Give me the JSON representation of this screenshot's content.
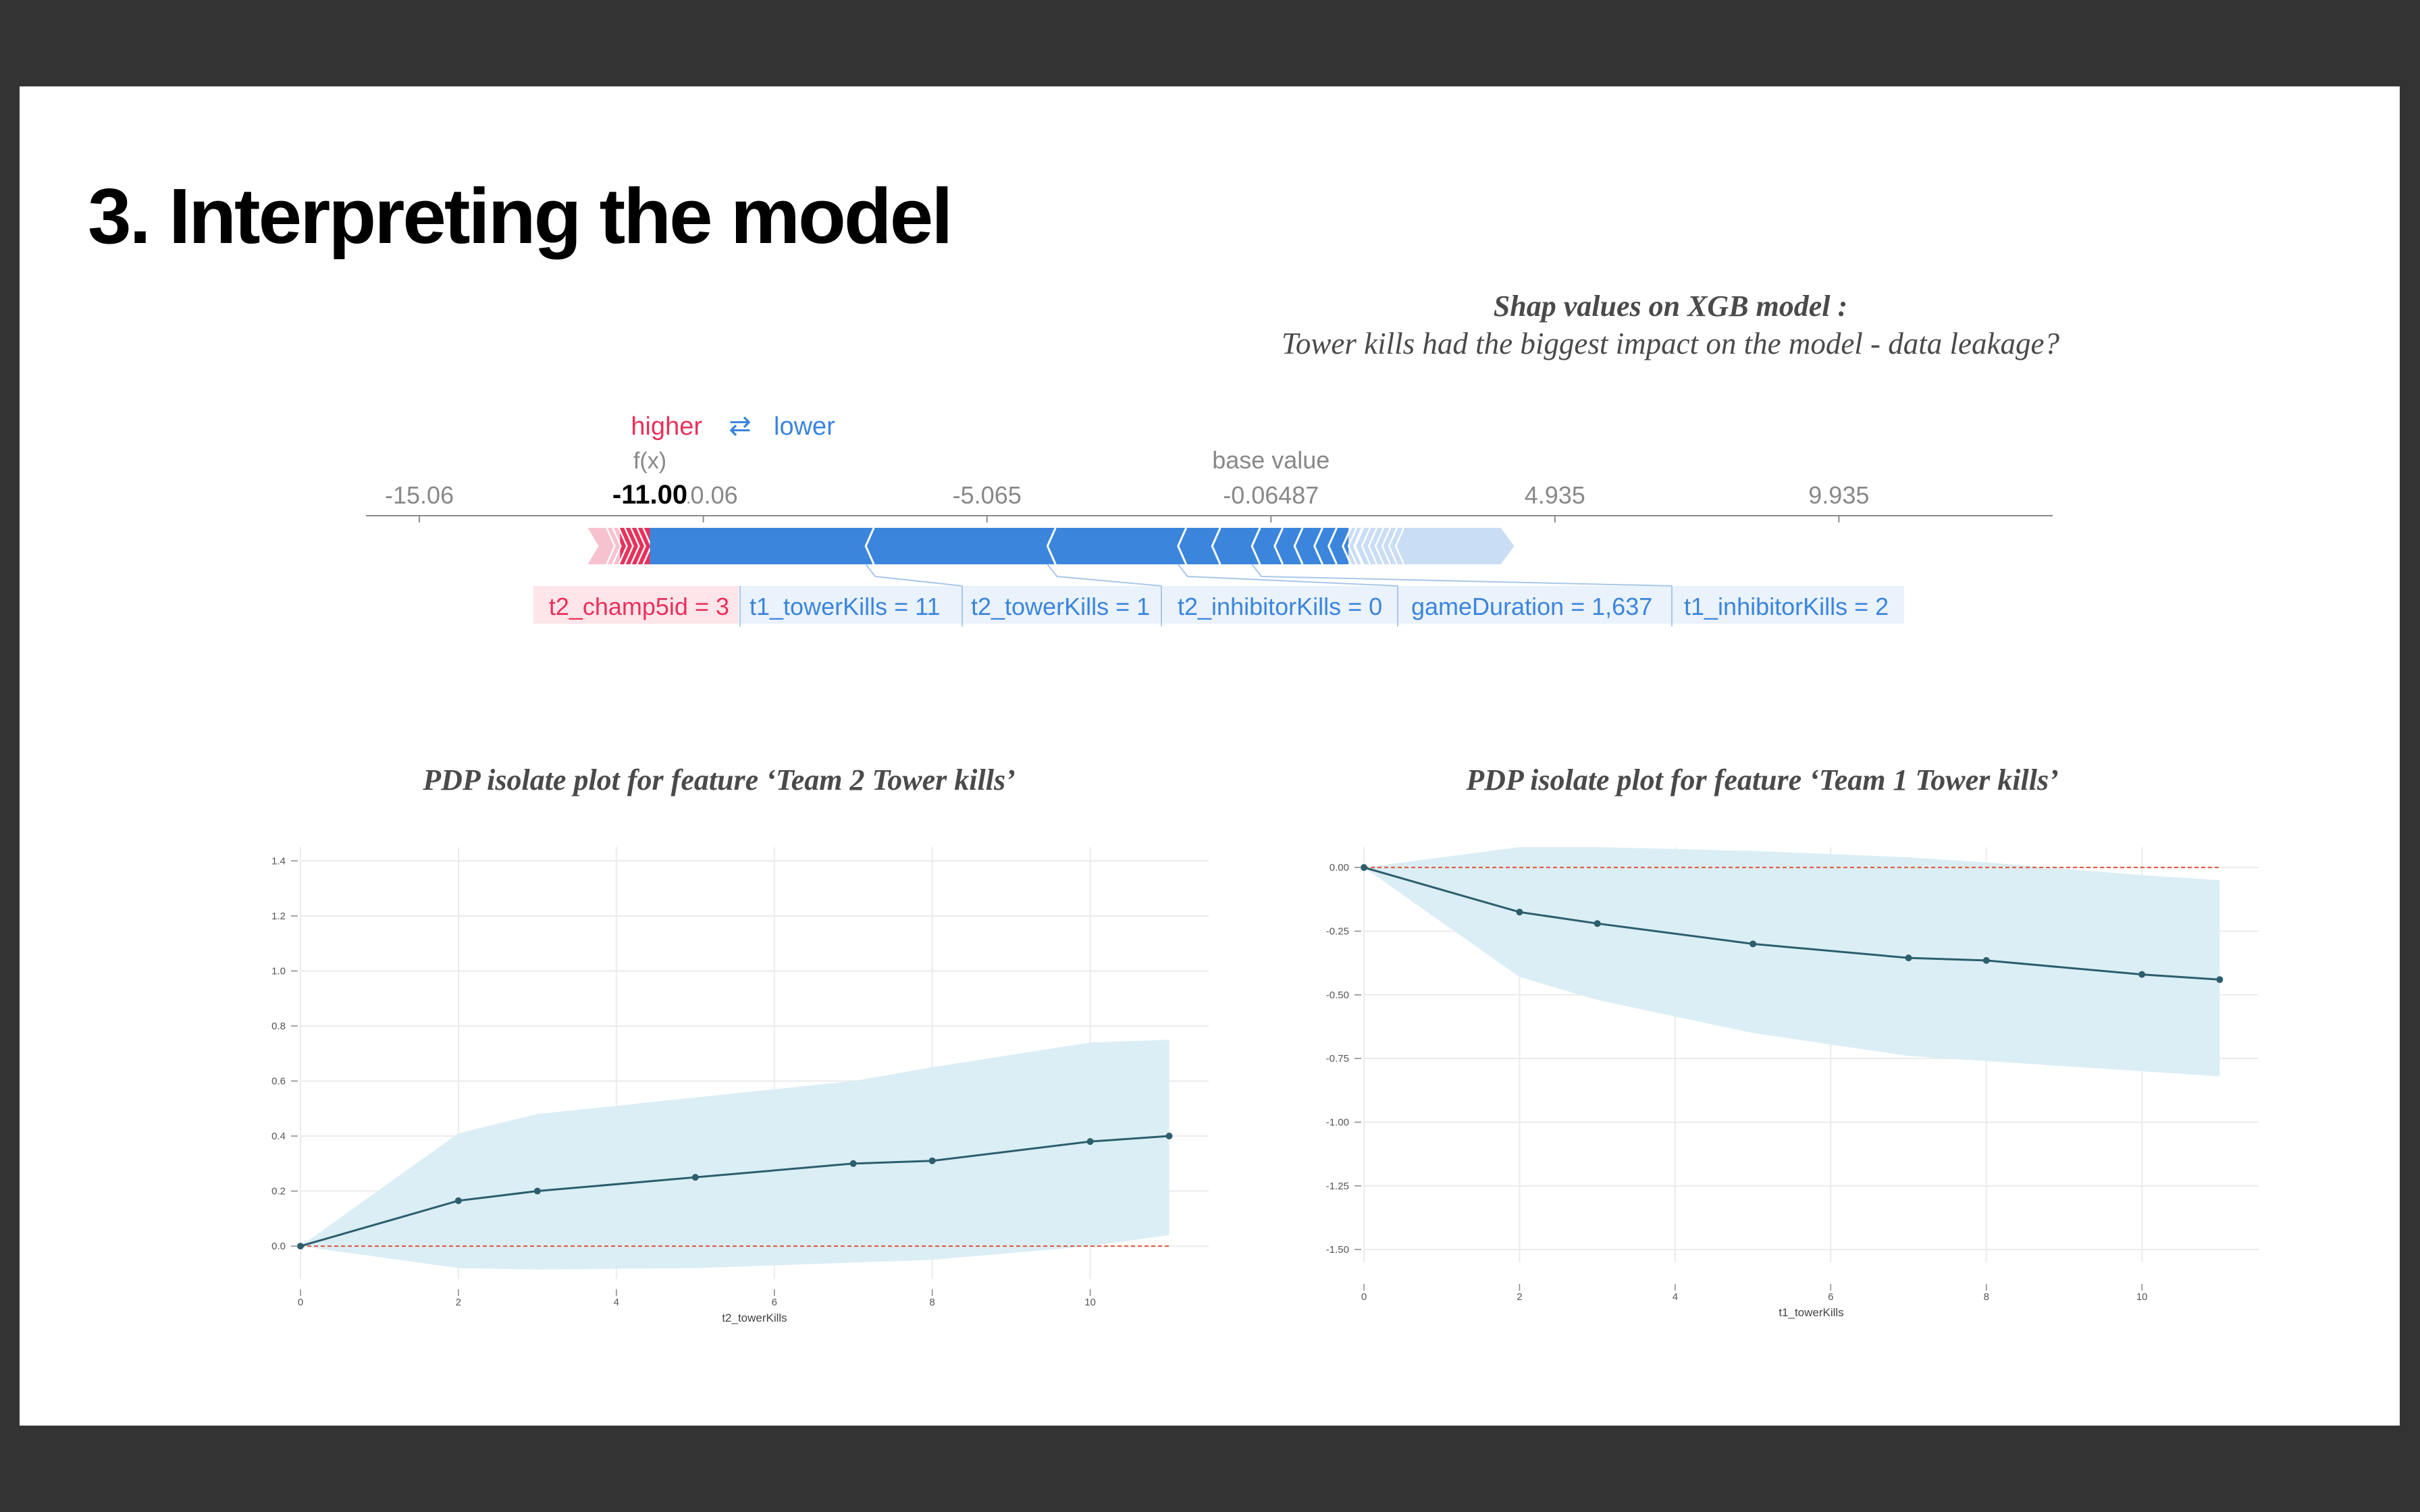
{
  "slide": {
    "title": "3. Interpreting the model",
    "shap_title": "Shap values on XGB model :",
    "shap_subtitle": "Tower kills had the biggest impact on the model - data leakage?",
    "pdp_left_title": "PDP isolate plot for feature ‘Team 2 Tower kills’",
    "pdp_right_title": "PDP isolate plot for feature ‘Team 1 Tower kills’"
  },
  "chart_data": [
    {
      "type": "force",
      "legend": {
        "higher": "higher",
        "lower": "lower",
        "arrows": "⇄"
      },
      "fx_label": "f(x)",
      "fx_value": -11.0,
      "fx_text": "-11.00",
      "base_label": "base value",
      "base_value": -0.06487,
      "axis_range": [
        -16.0,
        13.7
      ],
      "ticks": [
        {
          "value": -15.06,
          "label": "-15.06"
        },
        {
          "value": -10.06,
          "label": "-10.06"
        },
        {
          "value": -5.065,
          "label": "-5.065"
        },
        {
          "value": -0.06487,
          "label": "-0.06487"
        },
        {
          "value": 4.935,
          "label": "4.935"
        },
        {
          "value": 9.935,
          "label": "9.935"
        }
      ],
      "positive_range": [
        -12.0,
        -11.0
      ],
      "negative_range": [
        -11.0,
        4.1
      ],
      "negative_boundaries": [
        -7.2,
        -4.0,
        -1.7,
        -1.1,
        -0.4,
        0.0,
        0.35,
        0.7,
        0.95,
        1.2,
        1.4
      ],
      "features": [
        {
          "label": "t2_champ5id = 3",
          "effect": "higher"
        },
        {
          "label": "t1_towerKills = 11",
          "effect": "lower"
        },
        {
          "label": "t2_towerKills = 1",
          "effect": "lower"
        },
        {
          "label": "t2_inhibitorKills = 0",
          "effect": "lower"
        },
        {
          "label": "gameDuration = 1,637",
          "effect": "lower"
        },
        {
          "label": "t1_inhibitorKills = 2",
          "effect": "lower"
        }
      ],
      "colors": {
        "higher": "#e8315b",
        "lower": "#3b85dc",
        "axis": "#8a8a8a",
        "text": "#888888"
      }
    },
    {
      "type": "line",
      "xlabel": "t2_towerKills",
      "ylabel": "",
      "xlim": [
        0,
        11.5
      ],
      "ylim": [
        -0.12,
        1.45
      ],
      "xticks": [
        0,
        2,
        4,
        6,
        8,
        10
      ],
      "yticks": [
        0.0,
        0.2,
        0.4,
        0.6,
        0.8,
        1.0,
        1.2,
        1.4
      ],
      "ytick_labels": [
        "0.0",
        "0.2",
        "0.4",
        "0.6",
        "0.8",
        "1.0",
        "1.2",
        "1.4"
      ],
      "x": [
        0,
        2,
        3,
        5,
        7,
        8,
        10,
        11
      ],
      "y": [
        0.0,
        0.165,
        0.2,
        0.25,
        0.3,
        0.31,
        0.38,
        0.4
      ],
      "band_upper": [
        0.0,
        0.41,
        0.48,
        0.54,
        0.6,
        0.65,
        0.74,
        0.75
      ],
      "band_lower": [
        0.0,
        -0.08,
        -0.085,
        -0.08,
        -0.06,
        -0.05,
        0.0,
        0.04
      ],
      "reference_y": 0.0,
      "grid": true,
      "colors": {
        "line": "#2c5e6d",
        "band": "#dbeef5",
        "reference": "#e0533a"
      }
    },
    {
      "type": "line",
      "xlabel": "t1_towerKills",
      "ylabel": "",
      "xlim": [
        0,
        11.5
      ],
      "ylim": [
        -1.55,
        0.08
      ],
      "xticks": [
        0,
        2,
        4,
        6,
        8,
        10
      ],
      "yticks": [
        0.0,
        -0.25,
        -0.5,
        -0.75,
        -1.0,
        -1.25,
        -1.5
      ],
      "ytick_labels": [
        "0.00",
        "-0.25",
        "-0.50",
        "-0.75",
        "-1.00",
        "-1.25",
        "-1.50"
      ],
      "x": [
        0,
        2,
        3,
        5,
        7,
        8,
        10,
        11
      ],
      "y": [
        0.0,
        -0.175,
        -0.22,
        -0.3,
        -0.355,
        -0.365,
        -0.42,
        -0.44
      ],
      "band_upper": [
        0.0,
        0.08,
        0.08,
        0.065,
        0.04,
        0.02,
        -0.03,
        -0.05
      ],
      "band_lower": [
        0.0,
        -0.43,
        -0.52,
        -0.65,
        -0.74,
        -0.76,
        -0.8,
        -0.82
      ],
      "reference_y": 0.0,
      "grid": true,
      "colors": {
        "line": "#2c5e6d",
        "band": "#dbeef5",
        "reference": "#e0533a"
      }
    }
  ]
}
